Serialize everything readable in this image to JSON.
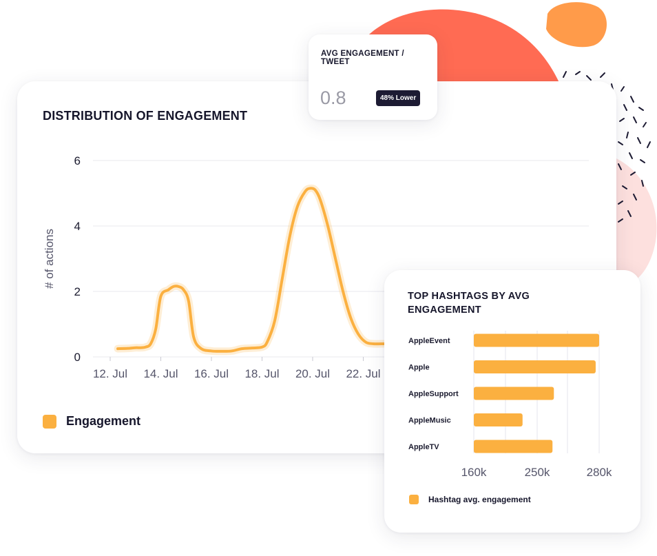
{
  "colors": {
    "accent": "#fbb040",
    "dark": "#1d1b33",
    "blob_coral": "#ff6b53",
    "blob_orange": "#ff9148",
    "blob_pink": "#fde0de"
  },
  "avg_card": {
    "title": "AVG ENGAGEMENT / TWEET",
    "value": "0.8",
    "badge": "48% Lower"
  },
  "chart_data": [
    {
      "type": "line",
      "title": "DISTRIBUTION OF ENGAGEMENT",
      "xlabel": "",
      "ylabel": "# of actions",
      "ylim": [
        0,
        6
      ],
      "yticks": [
        "0",
        "2",
        "4",
        "6"
      ],
      "x_tick_labels": [
        "12. Jul",
        "14. Jul",
        "16. Jul",
        "18. Jul",
        "20. Jul",
        "22. Jul"
      ],
      "x_tick_days": [
        12,
        14,
        16,
        18,
        20,
        22
      ],
      "grid": true,
      "legend": "bottom-left",
      "series": [
        {
          "name": "Engagement",
          "x": [
            12.3,
            12.7,
            13.0,
            13.2,
            13.4,
            13.6,
            13.8,
            14.0,
            14.3,
            14.5,
            14.7,
            14.9,
            15.1,
            15.3,
            15.6,
            16.0,
            16.4,
            16.8,
            17.2,
            17.6,
            18.0,
            18.2,
            18.5,
            18.8,
            19.1,
            19.4,
            19.7,
            19.9,
            20.1,
            20.3,
            20.6,
            20.9,
            21.2,
            21.5,
            21.8,
            22.1,
            22.4,
            22.7,
            22.95
          ],
          "values": [
            0.25,
            0.26,
            0.28,
            0.28,
            0.3,
            0.4,
            0.85,
            1.85,
            2.05,
            2.15,
            2.15,
            2.05,
            1.7,
            0.6,
            0.25,
            0.18,
            0.17,
            0.18,
            0.25,
            0.27,
            0.3,
            0.45,
            1.1,
            2.4,
            3.7,
            4.6,
            5.05,
            5.15,
            5.1,
            4.8,
            4.0,
            3.0,
            2.0,
            1.2,
            0.7,
            0.45,
            0.4,
            0.4,
            0.4
          ]
        }
      ]
    },
    {
      "type": "bar",
      "orientation": "horizontal",
      "title": "TOP HASHTAGS BY AVG ENGAGEMENT",
      "categories": [
        "AppleEvent",
        "Apple",
        "AppleSupport",
        "AppleMusic",
        "AppleTV"
      ],
      "values": [
        280000,
        275000,
        215000,
        170000,
        213000
      ],
      "xticks": [
        "160k",
        "250k",
        "280k"
      ],
      "xlim": [
        100000,
        280000
      ],
      "grid": true,
      "legend": "bottom-left",
      "series_name": "Hashtag avg. engagement"
    }
  ]
}
